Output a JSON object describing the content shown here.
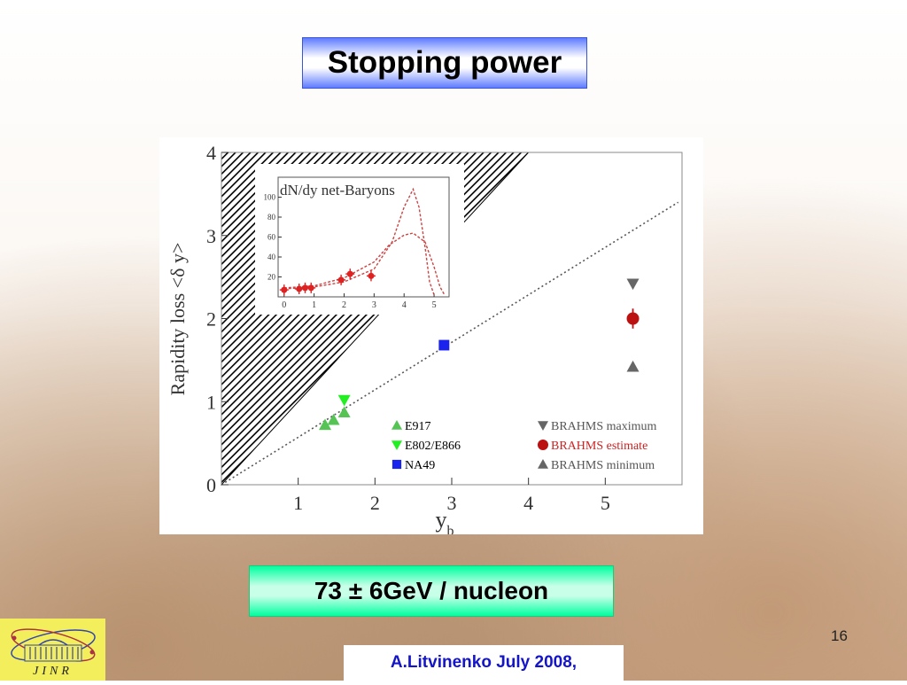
{
  "slide": {
    "title": "Stopping power",
    "energy": "73 ± 6GeV / nucleon",
    "footer": "A.Litvinenko July  2008,",
    "page_number": "16"
  },
  "logo": {
    "text": "JINR"
  },
  "chart_data": [
    {
      "type": "scatter",
      "xlabel": "y_b",
      "ylabel": "Rapidity loss <δ y>",
      "xlim": [
        0,
        6
      ],
      "ylim": [
        0,
        4
      ],
      "xticks": [
        1,
        2,
        3,
        4,
        5
      ],
      "yticks": [
        0,
        1,
        2,
        3,
        4
      ],
      "grid": false,
      "reference_line": {
        "style": "dotted",
        "from": [
          0,
          0
        ],
        "to": [
          5.95,
          3.4
        ]
      },
      "excluded_region": {
        "style": "hatched",
        "vertices": [
          [
            0,
            0
          ],
          [
            0,
            4
          ],
          [
            4,
            4
          ]
        ]
      },
      "series": [
        {
          "name": "E917",
          "marker": "triangle-up",
          "color": "#55c455",
          "points": [
            [
              1.35,
              0.72
            ],
            [
              1.46,
              0.78
            ],
            [
              1.6,
              0.87
            ]
          ]
        },
        {
          "name": "E802/E866",
          "marker": "triangle-down",
          "color": "#22ee22",
          "points": [
            [
              1.6,
              1.02
            ]
          ]
        },
        {
          "name": "NA49",
          "marker": "square",
          "color": "#1a22ee",
          "points": [
            [
              2.9,
              1.68
            ]
          ]
        },
        {
          "name": "BRAHMS maximum",
          "marker": "triangle-down",
          "color": "#666666",
          "points": [
            [
              5.36,
              2.42
            ]
          ]
        },
        {
          "name": "BRAHMS estimate",
          "marker": "circle",
          "color": "#bb1111",
          "points": [
            [
              5.36,
              2.0
            ]
          ],
          "yerr": [
            0.12
          ]
        },
        {
          "name": "BRAHMS minimum",
          "marker": "triangle-up",
          "color": "#666666",
          "points": [
            [
              5.36,
              1.42
            ]
          ]
        }
      ],
      "legend": [
        {
          "label": "E917",
          "marker": "triangle-up",
          "color": "#55c455",
          "text_color": "#000000"
        },
        {
          "label": "E802/E866",
          "marker": "triangle-down",
          "color": "#22ee22",
          "text_color": "#000000"
        },
        {
          "label": "NA49",
          "marker": "square",
          "color": "#1a22ee",
          "text_color": "#000000"
        },
        {
          "label": "BRAHMS maximum",
          "marker": "triangle-down",
          "color": "#666666",
          "text_color": "#555555"
        },
        {
          "label": "BRAHMS estimate",
          "marker": "circle",
          "color": "#bb1111",
          "text_color": "#cc2222"
        },
        {
          "label": "BRAHMS minimum",
          "marker": "triangle-up",
          "color": "#666666",
          "text_color": "#555555"
        }
      ]
    },
    {
      "type": "line",
      "title": "dN/dy net-Baryons",
      "xlim": [
        -0.2,
        5.5
      ],
      "ylim": [
        0,
        120
      ],
      "xticks": [
        0,
        1,
        2,
        3,
        4,
        5
      ],
      "yticks": [
        20,
        40,
        60,
        80,
        100
      ],
      "points": [
        {
          "x": 0.0,
          "y": 7
        },
        {
          "x": 0.5,
          "y": 8
        },
        {
          "x": 0.7,
          "y": 9
        },
        {
          "x": 0.9,
          "y": 9
        },
        {
          "x": 1.9,
          "y": 17
        },
        {
          "x": 2.2,
          "y": 23
        },
        {
          "x": 2.9,
          "y": 21
        }
      ],
      "curves": [
        {
          "name": "",
          "points": [
            [
              0,
              9
            ],
            [
              1,
              11
            ],
            [
              2,
              19
            ],
            [
              3,
              35
            ],
            [
              3.5,
              52
            ],
            [
              4.0,
              62
            ],
            [
              4.3,
              64
            ],
            [
              4.7,
              55
            ],
            [
              5.0,
              30
            ],
            [
              5.2,
              10
            ],
            [
              5.35,
              2
            ]
          ]
        },
        {
          "name": "",
          "points": [
            [
              0,
              8
            ],
            [
              1,
              10
            ],
            [
              2,
              15
            ],
            [
              3,
              28
            ],
            [
              3.6,
              55
            ],
            [
              4.0,
              90
            ],
            [
              4.3,
              108
            ],
            [
              4.5,
              90
            ],
            [
              4.7,
              50
            ],
            [
              4.85,
              15
            ],
            [
              5.0,
              2
            ]
          ]
        }
      ]
    }
  ]
}
